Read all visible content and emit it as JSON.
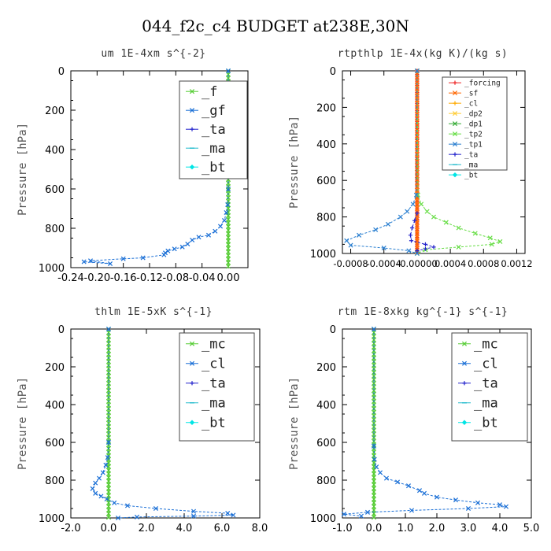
{
  "figure_title": "044_f2c_c4  BUDGET at238E,30N",
  "chart_data": [
    {
      "type": "line",
      "title": "um  1E-4xm s^{-2}",
      "ylabel": "Pressure [hPa]",
      "xlabel": "",
      "xlim": [
        -0.24,
        0.03
      ],
      "ylim": [
        1000,
        0
      ],
      "y_inverted": true,
      "xticks": [
        -0.24,
        -0.2,
        -0.16,
        -0.12,
        -0.08,
        -0.04,
        0.0
      ],
      "xtick_labels": [
        "-0.24",
        "-0.20",
        "-0.16",
        "-0.12",
        "-0.08",
        "-0.04",
        "0.00"
      ],
      "yticks": [
        0,
        200,
        400,
        600,
        800,
        1000
      ],
      "legend_position": "top-right",
      "series": [
        {
          "name": "_f",
          "color": "#55cc33",
          "marker": "x",
          "x": [
            0.0,
            0.0
          ],
          "y": [
            0,
            1000
          ]
        },
        {
          "name": "_gf",
          "color": "#1a6fd6",
          "marker": "x",
          "x": [
            0.0,
            0.0,
            0.0,
            -0.001,
            -0.003,
            -0.006,
            -0.012,
            -0.02,
            -0.03,
            -0.045,
            -0.055,
            -0.062,
            -0.07,
            -0.082,
            -0.092,
            -0.096,
            -0.098,
            -0.13,
            -0.16,
            -0.21,
            -0.18,
            -0.22
          ],
          "y": [
            0,
            400,
            600,
            680,
            720,
            760,
            790,
            815,
            835,
            845,
            860,
            880,
            895,
            905,
            915,
            925,
            935,
            950,
            955,
            965,
            980,
            970
          ]
        },
        {
          "name": "_ta",
          "color": "#2222cc",
          "marker": "+",
          "x": [],
          "y": []
        },
        {
          "name": "_ma",
          "color": "#22bbcc",
          "marker": "-",
          "x": [],
          "y": []
        },
        {
          "name": "_bt",
          "color": "#00e5e5",
          "marker": "diamond",
          "x": [],
          "y": []
        }
      ]
    },
    {
      "type": "line",
      "title": "rtpthlp  1E-4x(kg K)/(kg s)",
      "ylabel": "Pressure [hPa]",
      "xlabel": "",
      "xlim": [
        -0.0009,
        0.0013
      ],
      "ylim": [
        1000,
        0
      ],
      "y_inverted": true,
      "xticks": [
        -0.0008,
        -0.0004,
        0.0,
        0.0004,
        0.0008,
        0.0012
      ],
      "xtick_labels": [
        "-0.0008",
        "-0.0004",
        "-0.00000",
        "0.0004",
        "0.0008",
        "0.0012"
      ],
      "yticks": [
        0,
        200,
        400,
        600,
        800,
        1000
      ],
      "legend_position": "top-right",
      "series": [
        {
          "name": "_forcing",
          "color": "#ee2222",
          "marker": "+",
          "x": [
            0.0,
            0.0
          ],
          "y": [
            0,
            1000
          ]
        },
        {
          "name": "_sf",
          "color": "#ff6600",
          "marker": "x",
          "x": [
            0.0,
            0.0
          ],
          "y": [
            0,
            1000
          ]
        },
        {
          "name": "_cl",
          "color": "#ffaa00",
          "marker": "+",
          "x": [],
          "y": []
        },
        {
          "name": "_dp2",
          "color": "#ffcc33",
          "marker": "x",
          "x": [],
          "y": []
        },
        {
          "name": "_dp1",
          "color": "#33aa33",
          "marker": "x",
          "x": [],
          "y": []
        },
        {
          "name": "_tp2",
          "color": "#66dd44",
          "marker": "x",
          "x": [
            0.0,
            1e-05,
            5e-05,
            0.00012,
            0.0002,
            0.00035,
            0.0005,
            0.0007,
            0.00088,
            0.001,
            0.0009,
            0.0005,
            0.0001,
            0.0
          ],
          "y": [
            0,
            680,
            730,
            770,
            800,
            830,
            860,
            890,
            915,
            935,
            950,
            965,
            980,
            1000
          ]
        },
        {
          "name": "_tp1",
          "color": "#2a7fd0",
          "marker": "x",
          "x": [
            0.0,
            -1e-05,
            -5e-05,
            -0.00012,
            -0.0002,
            -0.00035,
            -0.0005,
            -0.0007,
            -0.00085,
            -0.0008,
            -0.0004,
            -0.0001,
            0.0
          ],
          "y": [
            0,
            680,
            730,
            770,
            800,
            840,
            870,
            900,
            930,
            955,
            970,
            985,
            1000
          ]
        },
        {
          "name": "_ta",
          "color": "#2222cc",
          "marker": "+",
          "x": [
            0.0,
            -3e-05,
            -6e-05,
            -8e-05,
            -7e-05,
            0.0001,
            0.0002,
            0.0001,
            0.0
          ],
          "y": [
            780,
            820,
            860,
            900,
            930,
            950,
            965,
            975,
            985
          ]
        },
        {
          "name": "_ma",
          "color": "#22bbcc",
          "marker": "-",
          "x": [],
          "y": []
        },
        {
          "name": "_bt",
          "color": "#00e5e5",
          "marker": "diamond",
          "x": [],
          "y": []
        }
      ]
    },
    {
      "type": "line",
      "title": "thlm  1E-5xK s^{-1}",
      "ylabel": "Pressure [hPa]",
      "xlabel": "",
      "xlim": [
        -2.0,
        8.0
      ],
      "ylim": [
        1000,
        0
      ],
      "y_inverted": true,
      "xticks": [
        -2.0,
        0.0,
        2.0,
        4.0,
        6.0,
        8.0
      ],
      "xtick_labels": [
        "-2.0",
        "0.0",
        "2.0",
        "4.0",
        "6.0",
        "8.0"
      ],
      "yticks": [
        0,
        200,
        400,
        600,
        800,
        1000
      ],
      "legend_position": "top-right",
      "series": [
        {
          "name": "_mc",
          "color": "#55cc33",
          "marker": "x",
          "x": [
            0.0,
            0.0
          ],
          "y": [
            0,
            1000
          ]
        },
        {
          "name": "_cl",
          "color": "#1a6fd6",
          "marker": "x",
          "x": [
            0.0,
            0.0,
            -0.05,
            -0.15,
            -0.3,
            -0.5,
            -0.7,
            -0.85,
            -0.7,
            -0.4,
            -0.1,
            0.3,
            1.0,
            2.5,
            4.5,
            6.3,
            6.6,
            4.5,
            1.5,
            0.5
          ],
          "y": [
            0,
            600,
            680,
            720,
            760,
            790,
            815,
            845,
            870,
            885,
            900,
            920,
            935,
            950,
            965,
            975,
            985,
            990,
            995,
            1000
          ]
        },
        {
          "name": "_ta",
          "color": "#2222cc",
          "marker": "+",
          "x": [],
          "y": []
        },
        {
          "name": "_ma",
          "color": "#22bbcc",
          "marker": "-",
          "x": [],
          "y": []
        },
        {
          "name": "_bt",
          "color": "#00e5e5",
          "marker": "diamond",
          "x": [],
          "y": []
        }
      ]
    },
    {
      "type": "line",
      "title": "rtm  1E-8xkg kg^{-1} s^{-1}",
      "ylabel": "Pressure [hPa]",
      "xlabel": "",
      "xlim": [
        -1.0,
        5.0
      ],
      "ylim": [
        1000,
        0
      ],
      "y_inverted": true,
      "xticks": [
        -1.0,
        0.0,
        1.0,
        2.0,
        3.0,
        4.0,
        5.0
      ],
      "xtick_labels": [
        "-1.0",
        "0.0",
        "1.0",
        "2.0",
        "3.0",
        "4.0",
        "5.0"
      ],
      "yticks": [
        0,
        200,
        400,
        600,
        800,
        1000
      ],
      "legend_position": "top-right",
      "series": [
        {
          "name": "_mc",
          "color": "#55cc33",
          "marker": "x",
          "x": [
            0.0,
            0.0
          ],
          "y": [
            0,
            1000
          ]
        },
        {
          "name": "_cl",
          "color": "#1a6fd6",
          "marker": "x",
          "x": [
            0.0,
            0.0,
            0.02,
            0.08,
            0.2,
            0.4,
            0.75,
            1.1,
            1.45,
            1.6,
            2.0,
            2.6,
            3.3,
            4.0,
            4.2,
            3.0,
            1.2,
            -0.2,
            -0.95,
            -0.4
          ],
          "y": [
            0,
            620,
            690,
            730,
            760,
            790,
            810,
            830,
            855,
            870,
            890,
            905,
            920,
            930,
            940,
            950,
            960,
            970,
            980,
            990
          ]
        },
        {
          "name": "_ta",
          "color": "#2222cc",
          "marker": "+",
          "x": [],
          "y": []
        },
        {
          "name": "_ma",
          "color": "#22bbcc",
          "marker": "-",
          "x": [],
          "y": []
        },
        {
          "name": "_bt",
          "color": "#00e5e5",
          "marker": "diamond",
          "x": [],
          "y": []
        }
      ]
    }
  ]
}
